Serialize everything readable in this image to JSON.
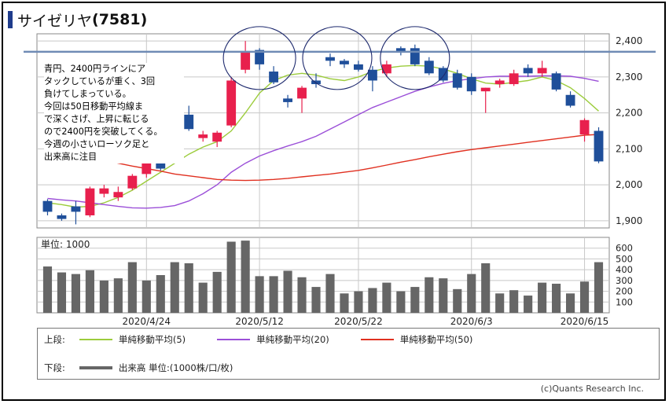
{
  "title": {
    "name": "サイゼリヤ",
    "code": "(7581)"
  },
  "annotation": [
    "青円、2400円ラインにア",
    "タックしているが重く、3回",
    "負けてしまっている。",
    "今回は50日移動平均線ま",
    "で深くさげ、上昇に転じる",
    "ので2400円を突破してくる。",
    "今週の小さいローソク足と",
    "出来高に注目"
  ],
  "volume_panel_label": "単位: 1000",
  "legend": {
    "upper_label": "上段:",
    "lower_label": "下段:",
    "ma5": "単純移動平均(5)",
    "ma20": "単純移動平均(20)",
    "ma50": "単純移動平均(50)",
    "volume": "出来高 単位:(1000株/口/枚)"
  },
  "credit": "(c)Quants Research Inc.",
  "colors": {
    "up": "#e8204d",
    "down": "#1f4f9a",
    "ma5": "#9ccc3c",
    "ma20": "#9b4fd8",
    "ma50": "#e03020",
    "volume": "#666666",
    "resistance_line": "#6f8bb5",
    "circle": "#1e2a6e",
    "grid": "#c8c8c8"
  },
  "chart_data": [
    {
      "type": "candlestick",
      "title": "",
      "xlabel": "",
      "ylabel": "",
      "ylim": [
        1880,
        2420
      ],
      "yticks": [
        1900,
        2000,
        2100,
        2200,
        2300,
        2400
      ],
      "ytick_labels": [
        "1,900",
        "2,000",
        "2,100",
        "2,200",
        "2,300",
        "2,400"
      ],
      "x_labels": [
        {
          "index": 7,
          "label": "2020/4/24"
        },
        {
          "index": 15,
          "label": "2020/5/12"
        },
        {
          "index": 22,
          "label": "2020/5/22"
        },
        {
          "index": 30,
          "label": "2020/6/3"
        },
        {
          "index": 38,
          "label": "2020/6/15"
        }
      ],
      "candles": [
        {
          "o": 1955,
          "h": 1960,
          "l": 1915,
          "c": 1925
        },
        {
          "o": 1915,
          "h": 1920,
          "l": 1900,
          "c": 1905
        },
        {
          "o": 1940,
          "h": 1955,
          "l": 1890,
          "c": 1925
        },
        {
          "o": 1915,
          "h": 1995,
          "l": 1910,
          "c": 1990
        },
        {
          "o": 1975,
          "h": 2000,
          "l": 1965,
          "c": 1990
        },
        {
          "o": 1965,
          "h": 1995,
          "l": 1955,
          "c": 1980
        },
        {
          "o": 1990,
          "h": 2030,
          "l": 1985,
          "c": 2025
        },
        {
          "o": 2030,
          "h": 2070,
          "l": 2020,
          "c": 2060
        },
        {
          "o": 2075,
          "h": 2080,
          "l": 2040,
          "c": 2045
        },
        {
          "o": 2080,
          "h": 2140,
          "l": 2070,
          "c": 2130
        },
        {
          "o": 2195,
          "h": 2220,
          "l": 2150,
          "c": 2155
        },
        {
          "o": 2130,
          "h": 2150,
          "l": 2120,
          "c": 2140
        },
        {
          "o": 2120,
          "h": 2150,
          "l": 2105,
          "c": 2145
        },
        {
          "o": 2165,
          "h": 2300,
          "l": 2160,
          "c": 2290
        },
        {
          "o": 2320,
          "h": 2400,
          "l": 2310,
          "c": 2370
        },
        {
          "o": 2375,
          "h": 2380,
          "l": 2320,
          "c": 2335
        },
        {
          "o": 2315,
          "h": 2330,
          "l": 2280,
          "c": 2285
        },
        {
          "o": 2240,
          "h": 2250,
          "l": 2215,
          "c": 2230
        },
        {
          "o": 2240,
          "h": 2275,
          "l": 2200,
          "c": 2270
        },
        {
          "o": 2290,
          "h": 2310,
          "l": 2270,
          "c": 2280
        },
        {
          "o": 2355,
          "h": 2365,
          "l": 2330,
          "c": 2345
        },
        {
          "o": 2345,
          "h": 2350,
          "l": 2325,
          "c": 2335
        },
        {
          "o": 2335,
          "h": 2345,
          "l": 2315,
          "c": 2320
        },
        {
          "o": 2320,
          "h": 2330,
          "l": 2260,
          "c": 2290
        },
        {
          "o": 2310,
          "h": 2345,
          "l": 2300,
          "c": 2335
        },
        {
          "o": 2380,
          "h": 2385,
          "l": 2360,
          "c": 2370
        },
        {
          "o": 2380,
          "h": 2390,
          "l": 2330,
          "c": 2335
        },
        {
          "o": 2345,
          "h": 2355,
          "l": 2305,
          "c": 2310
        },
        {
          "o": 2325,
          "h": 2330,
          "l": 2285,
          "c": 2290
        },
        {
          "o": 2310,
          "h": 2320,
          "l": 2265,
          "c": 2270
        },
        {
          "o": 2300,
          "h": 2310,
          "l": 2250,
          "c": 2260
        },
        {
          "o": 2260,
          "h": 2270,
          "l": 2200,
          "c": 2270
        },
        {
          "o": 2280,
          "h": 2295,
          "l": 2270,
          "c": 2290
        },
        {
          "o": 2280,
          "h": 2320,
          "l": 2275,
          "c": 2310
        },
        {
          "o": 2325,
          "h": 2335,
          "l": 2300,
          "c": 2310
        },
        {
          "o": 2310,
          "h": 2345,
          "l": 2300,
          "c": 2325
        },
        {
          "o": 2310,
          "h": 2315,
          "l": 2260,
          "c": 2265
        },
        {
          "o": 2250,
          "h": 2260,
          "l": 2215,
          "c": 2220
        },
        {
          "o": 2140,
          "h": 2185,
          "l": 2120,
          "c": 2180
        },
        {
          "o": 2150,
          "h": 2160,
          "l": 2060,
          "c": 2065
        }
      ],
      "series": [
        {
          "name": "単純移動平均(5)",
          "key": "ma5",
          "values": [
            1950,
            1945,
            1938,
            1940,
            1950,
            1965,
            1985,
            2010,
            2035,
            2060,
            2085,
            2105,
            2120,
            2150,
            2200,
            2255,
            2290,
            2305,
            2310,
            2305,
            2295,
            2290,
            2300,
            2315,
            2325,
            2330,
            2332,
            2330,
            2322,
            2310,
            2295,
            2283,
            2280,
            2285,
            2290,
            2300,
            2290,
            2270,
            2240,
            2205
          ]
        },
        {
          "name": "単純移動平均(20)",
          "key": "ma20",
          "values": [
            1962,
            1958,
            1955,
            1950,
            1945,
            1940,
            1936,
            1935,
            1937,
            1942,
            1955,
            1975,
            2000,
            2035,
            2060,
            2080,
            2095,
            2108,
            2120,
            2135,
            2155,
            2175,
            2195,
            2215,
            2230,
            2245,
            2260,
            2272,
            2282,
            2290,
            2295,
            2300,
            2302,
            2302,
            2302,
            2303,
            2303,
            2302,
            2296,
            2288
          ]
        },
        {
          "name": "単純移動平均(50)",
          "key": "ma50",
          "values": [
            2110,
            2100,
            2090,
            2080,
            2070,
            2060,
            2052,
            2045,
            2038,
            2030,
            2025,
            2020,
            2015,
            2013,
            2012,
            2013,
            2015,
            2018,
            2022,
            2026,
            2030,
            2035,
            2040,
            2047,
            2055,
            2063,
            2070,
            2078,
            2085,
            2092,
            2098,
            2103,
            2108,
            2113,
            2118,
            2123,
            2128,
            2133,
            2138,
            2140
          ]
        }
      ],
      "resistance_line": 2370
    },
    {
      "type": "bar",
      "title": "",
      "ylim": [
        0,
        700
      ],
      "yticks": [
        100,
        200,
        300,
        400,
        500,
        600
      ],
      "ytick_labels": [
        "100",
        "200",
        "300",
        "400",
        "500",
        "600"
      ],
      "values": [
        430,
        375,
        360,
        395,
        300,
        320,
        470,
        300,
        350,
        470,
        460,
        280,
        380,
        660,
        670,
        340,
        340,
        390,
        330,
        240,
        360,
        180,
        200,
        230,
        280,
        200,
        240,
        330,
        320,
        220,
        360,
        460,
        180,
        210,
        160,
        280,
        270,
        180,
        290,
        470
      ]
    }
  ]
}
